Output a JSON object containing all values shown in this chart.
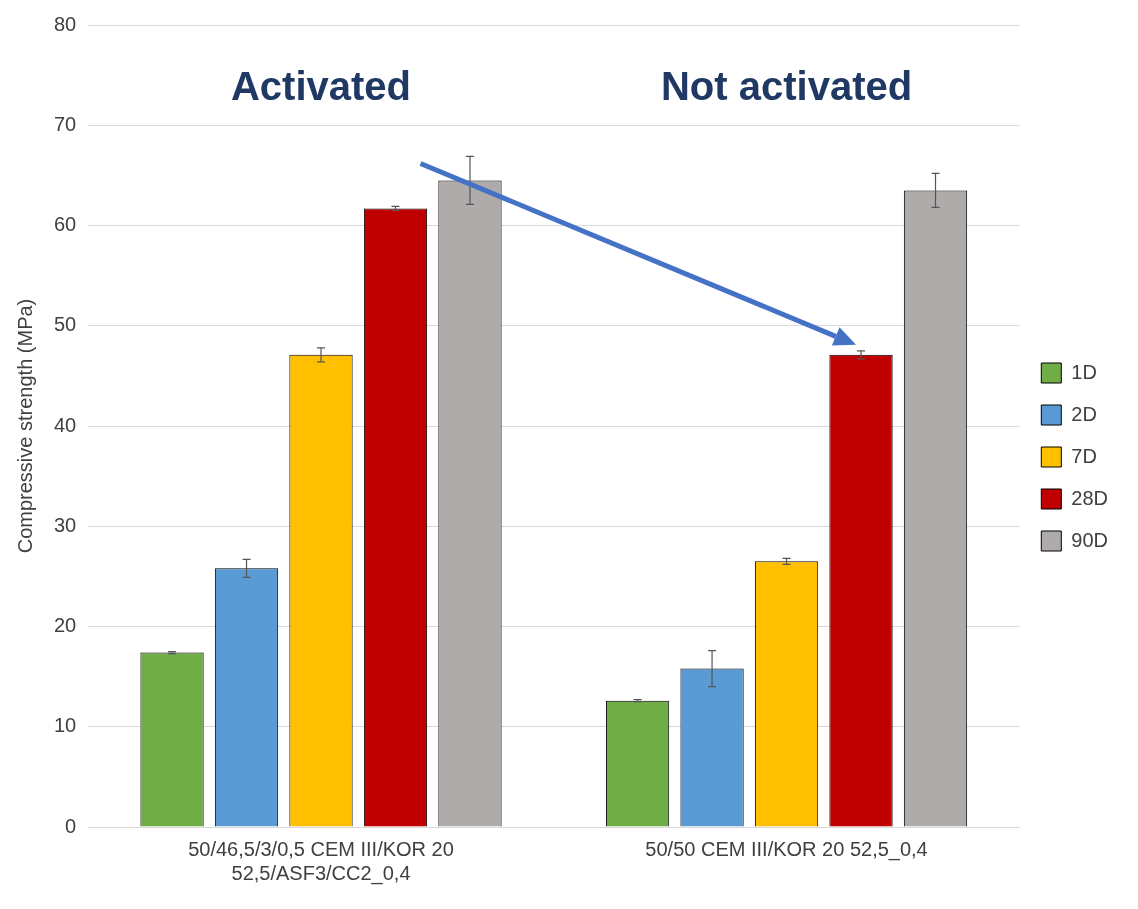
{
  "chart_data": {
    "type": "bar",
    "ylabel": "Compressive strength (MPa)",
    "categories": [
      "50/46,5/3/0,5 CEM III/KOR 20 52,5/ASF3/CC2_0,4",
      "50/50 CEM III/KOR 20 52,5_0,4"
    ],
    "series": [
      {
        "name": "1D",
        "color": "#70ad47",
        "values": [
          17.4,
          12.6
        ],
        "errors": [
          0.1,
          0.1
        ]
      },
      {
        "name": "2D",
        "color": "#5b9bd5",
        "values": [
          25.8,
          15.8
        ],
        "errors": [
          0.9,
          1.8
        ]
      },
      {
        "name": "7D",
        "color": "#ffc000",
        "values": [
          47.1,
          26.5
        ],
        "errors": [
          0.7,
          0.3
        ]
      },
      {
        "name": "28D",
        "color": "#c00000",
        "values": [
          61.7,
          47.1
        ],
        "errors": [
          0.2,
          0.4
        ]
      },
      {
        "name": "90D",
        "color": "#afabab",
        "values": [
          64.5,
          63.5
        ],
        "errors": [
          2.4,
          1.7
        ]
      }
    ],
    "ylim": [
      0,
      80
    ],
    "yticks": [
      0,
      10,
      20,
      30,
      40,
      50,
      60,
      70,
      80
    ],
    "grid": "y",
    "legend": "right",
    "annotations": [
      "Activated",
      "Not activated"
    ]
  }
}
